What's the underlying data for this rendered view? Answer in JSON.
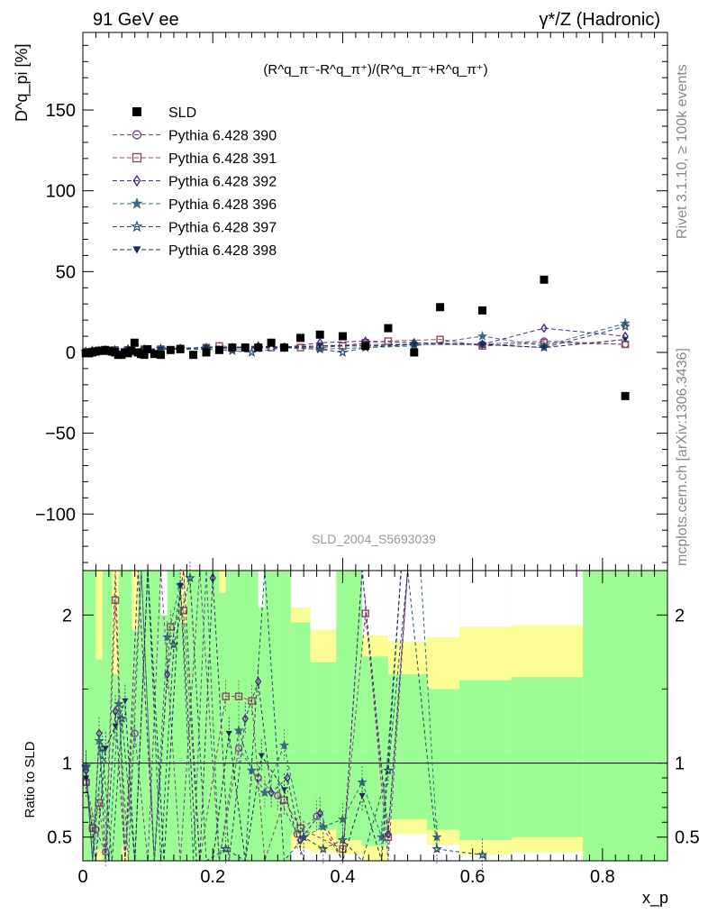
{
  "header": {
    "left": "91 GeV ee",
    "right": "γ*/Z (Hadronic)",
    "formula": "(R^q_π⁻-R^q_π⁺)/(R^q_π⁻+R^q_π⁺)",
    "side_rivet": "Rivet 3.1.10, ≥ 100k events",
    "side_site": "mcplots.cern.ch [arXiv:1306.3436]",
    "watermark": "SLD_2004_S5693039"
  },
  "chart_data": [
    {
      "type": "scatter",
      "title": "",
      "ylabel": "D^q_pi [%]",
      "xlabel": "x_p",
      "xlim": [
        0,
        0.9
      ],
      "ylim": [
        -135,
        198
      ],
      "yticks": [
        -100,
        -50,
        0,
        50,
        100,
        150
      ],
      "legend_position": "top-left",
      "series": [
        {
          "name": "SLD",
          "color": "#000000",
          "marker": "square-filled",
          "x": [
            0.0045,
            0.0095,
            0.0145,
            0.0195,
            0.0245,
            0.0295,
            0.0345,
            0.0395,
            0.0445,
            0.0495,
            0.0545,
            0.0595,
            0.0645,
            0.0695,
            0.0745,
            0.0795,
            0.0845,
            0.0895,
            0.0945,
            0.0995,
            0.11,
            0.12,
            0.135,
            0.15,
            0.17,
            0.19,
            0.21,
            0.23,
            0.25,
            0.27,
            0.29,
            0.31,
            0.335,
            0.365,
            0.4,
            0.435,
            0.47,
            0.51,
            0.55,
            0.615,
            0.71,
            0.835
          ],
          "y": [
            -0.5,
            -0.5,
            0,
            0.5,
            1,
            1,
            1.5,
            1,
            0.5,
            0,
            -1.5,
            -1.5,
            0,
            -0.5,
            1,
            6,
            0,
            -1,
            -1.5,
            2,
            -1,
            -1.5,
            1.5,
            2,
            -1.5,
            0,
            1.5,
            3,
            3,
            3,
            6,
            3,
            9,
            11,
            10,
            4,
            15,
            0,
            28,
            26,
            45,
            -27
          ]
        },
        {
          "name": "Pythia 6.428 390",
          "color": "#7a4a86",
          "marker": "circle-open",
          "x": [
            0.0045,
            0.0145,
            0.0245,
            0.0345,
            0.0495,
            0.0695,
            0.0945,
            0.12,
            0.15,
            0.19,
            0.23,
            0.27,
            0.31,
            0.365,
            0.435,
            0.51,
            0.615,
            0.71,
            0.835
          ],
          "y": [
            0.5,
            1,
            1,
            1,
            1.5,
            1.5,
            2,
            2,
            2.5,
            3,
            3,
            3.5,
            3.5,
            4,
            5,
            5,
            5,
            7,
            5
          ]
        },
        {
          "name": "Pythia 6.428 391",
          "color": "#8a4a5e",
          "marker": "square-open",
          "x": [
            0.0045,
            0.0145,
            0.0245,
            0.0345,
            0.0495,
            0.0695,
            0.0945,
            0.12,
            0.15,
            0.19,
            0.21,
            0.25,
            0.29,
            0.335,
            0.365,
            0.4,
            0.435,
            0.47,
            0.55,
            0.615,
            0.71,
            0.835
          ],
          "y": [
            0.5,
            0.5,
            1,
            1,
            1.5,
            1.5,
            2,
            2,
            2.5,
            3,
            4,
            3,
            3,
            3,
            3,
            4,
            6,
            7,
            8,
            4,
            6,
            5
          ]
        },
        {
          "name": "Pythia 6.428 392",
          "color": "#4a2a7a",
          "marker": "diamond-open",
          "x": [
            0.0045,
            0.0145,
            0.0245,
            0.0345,
            0.0495,
            0.0695,
            0.0945,
            0.12,
            0.15,
            0.19,
            0.23,
            0.27,
            0.31,
            0.365,
            0.435,
            0.51,
            0.615,
            0.71,
            0.835
          ],
          "y": [
            0.5,
            1,
            1,
            1.5,
            1,
            2,
            2,
            2,
            2.5,
            3,
            3,
            4,
            3,
            6,
            7,
            6,
            5,
            15,
            10
          ]
        },
        {
          "name": "Pythia 6.428 396",
          "color": "#3a6a7a",
          "marker": "star-filled",
          "x": [
            0.0045,
            0.0145,
            0.0245,
            0.0345,
            0.0495,
            0.0695,
            0.0945,
            0.12,
            0.15,
            0.19,
            0.23,
            0.27,
            0.31,
            0.365,
            0.435,
            0.51,
            0.615,
            0.71,
            0.835
          ],
          "y": [
            0.5,
            1,
            1,
            1.5,
            1.5,
            2,
            2,
            2.5,
            2,
            3,
            2,
            2.5,
            3,
            2,
            3,
            4,
            10,
            4,
            18
          ]
        },
        {
          "name": "Pythia 6.428 397",
          "color": "#2a4a6a",
          "marker": "star-open",
          "x": [
            0.0045,
            0.0145,
            0.0245,
            0.0345,
            0.0495,
            0.0695,
            0.0945,
            0.12,
            0.15,
            0.19,
            0.23,
            0.26,
            0.31,
            0.365,
            0.4,
            0.435,
            0.51,
            0.615,
            0.71,
            0.835
          ],
          "y": [
            0.5,
            1,
            1,
            1,
            1.5,
            1.5,
            1.5,
            2,
            2,
            2,
            1,
            0,
            3,
            2,
            0,
            3,
            5,
            5,
            3,
            16
          ]
        },
        {
          "name": "Pythia 6.428 398",
          "color": "#1a2a5a",
          "marker": "triangle-down-filled",
          "x": [
            0.0045,
            0.0145,
            0.0245,
            0.0345,
            0.0495,
            0.0695,
            0.0945,
            0.12,
            0.15,
            0.19,
            0.23,
            0.27,
            0.31,
            0.365,
            0.435,
            0.51,
            0.615,
            0.71,
            0.835
          ],
          "y": [
            0.5,
            1,
            1,
            1.5,
            1.5,
            2,
            2,
            2,
            2.5,
            3,
            3,
            3.5,
            3,
            4,
            4,
            5,
            5,
            3,
            8
          ]
        }
      ]
    },
    {
      "type": "line",
      "ylabel": "Ratio to SLD",
      "xlabel": "x_p",
      "xlim": [
        0,
        0.9
      ],
      "ylim": [
        0.34,
        2.3
      ],
      "yticks": [
        0.5,
        1,
        2
      ],
      "xticks": [
        0,
        0.2,
        0.4,
        0.6,
        0.8
      ],
      "reference_line": 1,
      "bands": {
        "green": "#9cfd95",
        "yellow": "#fdfd95",
        "bins": [
          {
            "x0": 0.39,
            "x1": 0.43,
            "g": [
              0.48,
              2.3
            ],
            "y": [
              0.38,
              2.3
            ]
          },
          {
            "x0": 0.43,
            "x1": 0.47,
            "g": [
              0.44,
              1.72
            ],
            "y": [
              0.34,
              1.86
            ]
          },
          {
            "x0": 0.47,
            "x1": 0.53,
            "g": [
              0.62,
              1.6
            ],
            "y": [
              0.52,
              1.82
            ]
          },
          {
            "x0": 0.53,
            "x1": 0.58,
            "g": [
              0.55,
              1.5
            ],
            "y": [
              0.45,
              1.85
            ]
          },
          {
            "x0": 0.58,
            "x1": 0.66,
            "g": [
              0.48,
              1.56
            ],
            "y": [
              0.38,
              1.92
            ]
          },
          {
            "x0": 0.66,
            "x1": 0.77,
            "g": [
              0.5,
              1.58
            ],
            "y": [
              0.4,
              1.93
            ]
          },
          {
            "x0": 0.77,
            "x1": 0.9,
            "g": [
              0.34,
              2.3
            ],
            "y": [
              0.34,
              2.3
            ]
          },
          {
            "x0": 0.35,
            "x1": 0.39,
            "g": [
              0.55,
              1.68
            ],
            "y": [
              0.4,
              1.9
            ]
          },
          {
            "x0": 0.32,
            "x1": 0.35,
            "g": [
              0.52,
              1.95
            ],
            "y": [
              0.42,
              2.05
            ]
          },
          {
            "x0": 0.3,
            "x1": 0.32,
            "g": [
              0.34,
              2.3
            ],
            "y": [
              0.34,
              2.3
            ]
          }
        ]
      },
      "series": [
        {
          "name": "Pythia 6.428 390",
          "color": "#7a4a86",
          "marker": "circle-open",
          "x": [
            0.005,
            0.02,
            0.035,
            0.05,
            0.065,
            0.08,
            0.1,
            0.12,
            0.15,
            0.18,
            0.21,
            0.24,
            0.27,
            0.3,
            0.33,
            0.36,
            0.4,
            0.43,
            0.47,
            0.5
          ],
          "y": [
            0.87,
            0.55,
            0.4,
            2.3,
            0.34,
            1.2,
            0.34,
            2.3,
            0.34,
            2.3,
            0.34,
            1.1,
            0.9,
            0.78,
            0.52,
            0.64,
            0.34,
            2.3,
            0.34,
            2.3
          ]
        },
        {
          "name": "Pythia 6.428 391",
          "color": "#8a4a5e",
          "marker": "square-open",
          "x": [
            0.005,
            0.015,
            0.025,
            0.035,
            0.05,
            0.065,
            0.09,
            0.11,
            0.135,
            0.155,
            0.18,
            0.22,
            0.24,
            0.26,
            0.28,
            0.31,
            0.335,
            0.4,
            0.435,
            0.47,
            0.5
          ],
          "y": [
            0.87,
            0.56,
            0.73,
            0.34,
            2.1,
            0.34,
            2.3,
            0.34,
            1.92,
            2.03,
            0.34,
            1.45,
            1.45,
            1.42,
            0.34,
            0.75,
            0.56,
            0.42,
            2.01,
            0.5,
            2.3
          ]
        },
        {
          "name": "Pythia 6.428 392",
          "color": "#4a2a7a",
          "marker": "diamond-open",
          "x": [
            0.005,
            0.015,
            0.025,
            0.035,
            0.05,
            0.065,
            0.085,
            0.11,
            0.13,
            0.155,
            0.18,
            0.2,
            0.225,
            0.25,
            0.27,
            0.29,
            0.315,
            0.335,
            0.365,
            0.4,
            0.43,
            0.47,
            0.5
          ],
          "y": [
            0.95,
            0.34,
            1.2,
            0.34,
            1.35,
            0.34,
            2.3,
            0.34,
            1.6,
            2.3,
            0.34,
            2.25,
            0.34,
            1.3,
            1.55,
            0.8,
            0.9,
            0.48,
            0.66,
            0.34,
            2.3,
            0.52,
            2.3
          ]
        },
        {
          "name": "Pythia 6.428 396",
          "color": "#3a6a7a",
          "marker": "star-filled",
          "x": [
            0.005,
            0.015,
            0.025,
            0.04,
            0.055,
            0.07,
            0.09,
            0.11,
            0.13,
            0.15,
            0.17,
            0.19,
            0.21,
            0.24,
            0.26,
            0.28,
            0.31,
            0.34,
            0.37,
            0.4,
            0.43,
            0.46,
            0.49,
            0.52,
            0.545
          ],
          "y": [
            0.98,
            0.34,
            1.15,
            0.34,
            1.4,
            0.34,
            2.3,
            0.34,
            1.85,
            2.2,
            0.34,
            2.3,
            0.34,
            1.22,
            0.95,
            0.8,
            1.12,
            0.5,
            0.57,
            0.62,
            0.87,
            0.5,
            2.3,
            2.3,
            0.5
          ]
        },
        {
          "name": "Pythia 6.428 397",
          "color": "#2a4a6a",
          "marker": "star-open",
          "x": [
            0.005,
            0.015,
            0.03,
            0.045,
            0.06,
            0.08,
            0.1,
            0.12,
            0.14,
            0.165,
            0.19,
            0.22,
            0.25,
            0.28,
            0.31,
            0.34,
            0.37,
            0.4,
            0.43,
            0.47,
            0.5,
            0.545,
            0.615
          ],
          "y": [
            0.97,
            0.34,
            1.1,
            0.34,
            1.3,
            0.34,
            2.3,
            0.34,
            1.8,
            2.25,
            0.34,
            0.42,
            0.34,
            2.3,
            0.34,
            0.5,
            0.42,
            0.48,
            0.34,
            0.95,
            2.3,
            0.42,
            0.38
          ]
        },
        {
          "name": "Pythia 6.428 398",
          "color": "#1a2a5a",
          "marker": "triangle-down-filled",
          "x": [
            0.005,
            0.02,
            0.035,
            0.05,
            0.065,
            0.08,
            0.1,
            0.125,
            0.15,
            0.175,
            0.2,
            0.225,
            0.25,
            0.275,
            0.31,
            0.34,
            0.37,
            0.4,
            0.43,
            0.46,
            0.49
          ],
          "y": [
            0.9,
            0.34,
            1.1,
            1.25,
            1.42,
            0.34,
            2.3,
            0.34,
            2.2,
            0.34,
            0.34,
            1.2,
            0.34,
            1.05,
            0.82,
            0.34,
            0.34,
            0.34,
            0.78,
            0.34,
            2.3
          ]
        }
      ]
    }
  ]
}
